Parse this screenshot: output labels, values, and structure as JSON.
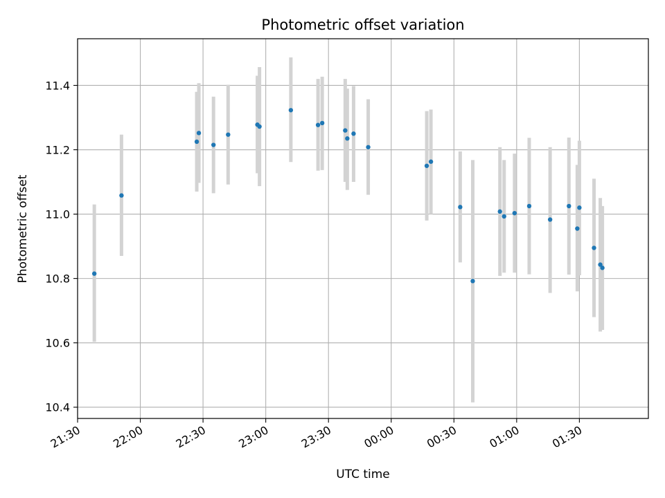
{
  "chart_data": {
    "type": "scatter",
    "title": "Photometric offset variation",
    "xlabel": "UTC time",
    "ylabel": "Photometric offset",
    "x_unit": "UTC time (HH:MM)",
    "xlim": [
      "21:30",
      "02:03"
    ],
    "ylim": [
      10.365,
      11.545
    ],
    "x_ticks": [
      "21:30",
      "22:00",
      "22:30",
      "23:00",
      "23:30",
      "00:00",
      "00:30",
      "01:00",
      "01:30"
    ],
    "y_ticks": [
      10.4,
      10.6,
      10.8,
      11.0,
      11.2,
      11.4
    ],
    "grid": true,
    "point_color": "#1f77b4",
    "errorbar_color": "#d3d3d3",
    "series": [
      {
        "points": [
          {
            "x": "21:38",
            "y": 10.815,
            "low": 10.603,
            "high": 11.03
          },
          {
            "x": "21:51",
            "y": 11.058,
            "low": 10.87,
            "high": 11.247
          },
          {
            "x": "22:27",
            "y": 11.225,
            "low": 11.07,
            "high": 11.38
          },
          {
            "x": "22:28",
            "y": 11.252,
            "low": 11.097,
            "high": 11.407
          },
          {
            "x": "22:35",
            "y": 11.215,
            "low": 11.065,
            "high": 11.365
          },
          {
            "x": "22:42",
            "y": 11.247,
            "low": 11.092,
            "high": 11.402
          },
          {
            "x": "22:56",
            "y": 11.278,
            "low": 11.127,
            "high": 11.43
          },
          {
            "x": "22:57",
            "y": 11.272,
            "low": 11.087,
            "high": 11.457
          },
          {
            "x": "23:12",
            "y": 11.323,
            "low": 11.162,
            "high": 11.487
          },
          {
            "x": "23:25",
            "y": 11.277,
            "low": 11.135,
            "high": 11.42
          },
          {
            "x": "23:27",
            "y": 11.283,
            "low": 11.137,
            "high": 11.427
          },
          {
            "x": "23:38",
            "y": 11.26,
            "low": 11.1,
            "high": 11.42
          },
          {
            "x": "23:39",
            "y": 11.235,
            "low": 11.075,
            "high": 11.39
          },
          {
            "x": "23:42",
            "y": 11.25,
            "low": 11.1,
            "high": 11.398
          },
          {
            "x": "23:49",
            "y": 11.208,
            "low": 11.06,
            "high": 11.357
          },
          {
            "x": "00:17",
            "y": 11.15,
            "low": 10.98,
            "high": 11.32
          },
          {
            "x": "00:19",
            "y": 11.163,
            "low": 11.0,
            "high": 11.325
          },
          {
            "x": "00:33",
            "y": 11.022,
            "low": 10.85,
            "high": 11.195
          },
          {
            "x": "00:39",
            "y": 10.792,
            "low": 10.415,
            "high": 11.168
          },
          {
            "x": "00:52",
            "y": 11.008,
            "low": 10.808,
            "high": 11.208
          },
          {
            "x": "00:54",
            "y": 10.993,
            "low": 10.818,
            "high": 11.168
          },
          {
            "x": "00:59",
            "y": 11.003,
            "low": 10.818,
            "high": 11.188
          },
          {
            "x": "01:06",
            "y": 11.025,
            "low": 10.813,
            "high": 11.237
          },
          {
            "x": "01:16",
            "y": 10.983,
            "low": 10.755,
            "high": 11.208
          },
          {
            "x": "01:25",
            "y": 11.025,
            "low": 10.812,
            "high": 11.238
          },
          {
            "x": "01:29",
            "y": 10.955,
            "low": 10.76,
            "high": 11.153
          },
          {
            "x": "01:30",
            "y": 11.02,
            "low": 10.81,
            "high": 11.228
          },
          {
            "x": "01:37",
            "y": 10.895,
            "low": 10.68,
            "high": 11.11
          },
          {
            "x": "01:40",
            "y": 10.843,
            "low": 10.635,
            "high": 11.05
          },
          {
            "x": "01:41",
            "y": 10.833,
            "low": 10.64,
            "high": 11.025
          }
        ]
      }
    ]
  }
}
